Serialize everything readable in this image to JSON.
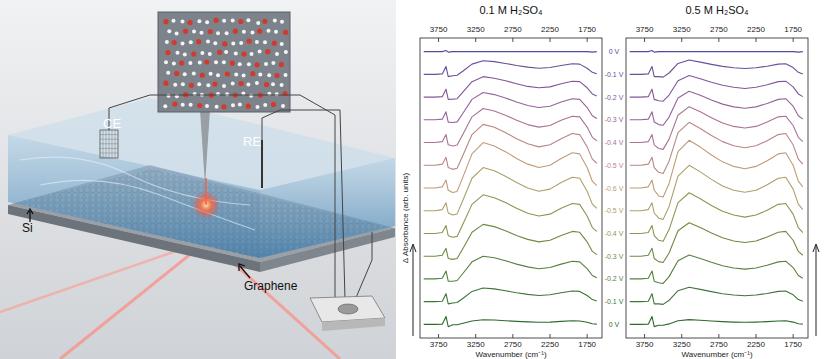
{
  "chart_data": [
    {
      "type": "line",
      "title": "0.1 M H₂SO₄",
      "xlabel": "Wavenumber (cm⁻¹)",
      "ylabel": "Δ Absorbance (arb. units)",
      "xlim": [
        4000,
        1550
      ],
      "xticks": [
        3750,
        3250,
        2750,
        2250,
        1750
      ],
      "ylim": [
        -0.6,
        12.6
      ],
      "tick_labels": "x",
      "grid": false,
      "x": [
        3950,
        3800,
        3700,
        3650,
        3620,
        3560,
        3500,
        3420,
        3300,
        3150,
        3000,
        2850,
        2700,
        2550,
        2400,
        2250,
        2100,
        1950,
        1850,
        1750,
        1680,
        1620
      ],
      "series": [
        {
          "name": "0 V",
          "color": "#4f4c9c",
          "values": [
            12,
            12,
            12,
            12.05,
            11.98,
            12,
            12,
            12,
            12,
            12,
            12,
            12,
            12,
            12,
            12,
            12,
            12,
            12,
            12,
            12,
            11.98,
            12
          ]
        },
        {
          "name": "-0.1 V",
          "color": "#6a4f96",
          "values": [
            11,
            11,
            11.02,
            11.35,
            10.9,
            10.94,
            10.96,
            11.15,
            11.45,
            11.6,
            11.56,
            11.48,
            11.39,
            11.32,
            11.27,
            11.3,
            11.39,
            11.47,
            11.45,
            11.27,
            11.09,
            11.03
          ]
        },
        {
          "name": "-0.2 V",
          "color": "#82579a",
          "values": [
            10,
            10,
            10.02,
            10.35,
            9.9,
            9.91,
            9.93,
            10.23,
            10.68,
            10.9,
            10.83,
            10.72,
            10.59,
            10.47,
            10.41,
            10.45,
            10.59,
            10.7,
            10.68,
            10.41,
            10.14,
            10.05
          ]
        },
        {
          "name": "-0.3 V",
          "color": "#96639a",
          "values": [
            9,
            9,
            9.03,
            9.35,
            8.9,
            8.88,
            8.91,
            9.3,
            9.9,
            10.2,
            10.11,
            9.96,
            9.78,
            9.63,
            9.54,
            9.6,
            9.78,
            9.93,
            9.9,
            9.54,
            9.18,
            9.06
          ]
        },
        {
          "name": "-0.4 V",
          "color": "#aa7394",
          "values": [
            8,
            8,
            8.04,
            8.35,
            7.9,
            7.85,
            7.89,
            8.38,
            9.13,
            9.5,
            9.39,
            9.2,
            8.98,
            8.79,
            8.68,
            8.75,
            8.98,
            9.16,
            9.13,
            8.68,
            8.23,
            8.08
          ]
        },
        {
          "name": "-0.5 V",
          "color": "#b98686",
          "values": [
            7,
            7,
            7.05,
            7.35,
            6.9,
            6.82,
            6.87,
            7.45,
            8.35,
            8.8,
            8.67,
            8.44,
            8.17,
            7.95,
            7.81,
            7.9,
            8.17,
            8.4,
            8.35,
            7.81,
            7.27,
            7.09
          ]
        },
        {
          "name": "-0.6 V",
          "color": "#c09a78",
          "values": [
            6,
            6,
            6.05,
            6.35,
            5.9,
            5.8,
            5.85,
            6.5,
            7.5,
            8,
            7.85,
            7.6,
            7.3,
            7.05,
            6.9,
            7,
            7.3,
            7.55,
            7.5,
            6.9,
            6.3,
            6.1
          ]
        },
        {
          "name": "-0.5 V",
          "color": "#aca06a",
          "values": [
            5,
            5,
            5.05,
            5.35,
            4.9,
            4.81,
            4.86,
            5.48,
            6.43,
            6.9,
            6.76,
            6.52,
            6.24,
            6,
            5.86,
            5.95,
            6.24,
            6.47,
            6.43,
            5.86,
            5.29,
            5.1
          ]
        },
        {
          "name": "-0.4 V",
          "color": "#8e9552",
          "values": [
            4,
            4,
            4.04,
            4.35,
            3.9,
            3.83,
            3.87,
            4.43,
            5.28,
            5.7,
            5.57,
            5.36,
            5.11,
            4.89,
            4.77,
            4.85,
            5.11,
            5.32,
            5.28,
            4.77,
            4.26,
            4.09
          ]
        },
        {
          "name": "-0.3 V",
          "color": "#708a44",
          "values": [
            3,
            3,
            3.04,
            3.35,
            2.9,
            2.86,
            2.9,
            3.35,
            4.05,
            4.4,
            4.3,
            4.12,
            3.91,
            3.74,
            3.63,
            3.7,
            3.91,
            4.09,
            4.05,
            3.63,
            3.21,
            3.07
          ]
        },
        {
          "name": "-0.2 V",
          "color": "#558040",
          "values": [
            2,
            2,
            2.03,
            2.35,
            1.9,
            1.9,
            1.93,
            2.25,
            2.75,
            3,
            2.93,
            2.8,
            2.65,
            2.53,
            2.45,
            2.5,
            2.65,
            2.78,
            2.75,
            2.45,
            2.15,
            2.05
          ]
        },
        {
          "name": "-0.1 V",
          "color": "#40753a",
          "values": [
            1,
            1,
            1.02,
            1.35,
            0.9,
            0.94,
            0.96,
            1.15,
            1.45,
            1.6,
            1.56,
            1.48,
            1.39,
            1.32,
            1.27,
            1.3,
            1.39,
            1.47,
            1.45,
            1.27,
            1.09,
            1.03
          ]
        },
        {
          "name": "0 V",
          "color": "#2e6a2e",
          "values": [
            0,
            0,
            0.01,
            0.35,
            -0.1,
            -0.02,
            -0.02,
            0.05,
            0.15,
            0.2,
            0.19,
            0.16,
            0.13,
            0.11,
            0.09,
            0.1,
            0.13,
            0.16,
            0.15,
            0.09,
            0.03,
            0.01
          ]
        }
      ]
    },
    {
      "type": "line",
      "title": "0.5 M H₂SO₄",
      "xlabel": "Wavenumber (cm⁻¹)",
      "xlim": [
        4000,
        1550
      ],
      "xticks": [
        3750,
        3250,
        2750,
        2250,
        1750
      ],
      "ylim": [
        -0.6,
        12.6
      ],
      "tick_labels": "x",
      "grid": false,
      "x": [
        3950,
        3800,
        3700,
        3650,
        3620,
        3560,
        3500,
        3420,
        3300,
        3150,
        3000,
        2850,
        2700,
        2550,
        2400,
        2250,
        2100,
        1950,
        1850,
        1750,
        1680,
        1620
      ],
      "series": [
        {
          "color": "#4f4c9c",
          "values": [
            12,
            12,
            12,
            12.05,
            11.98,
            12,
            12,
            12,
            12,
            12,
            12,
            12,
            12,
            12,
            12,
            12,
            12,
            12,
            12,
            12,
            11.98,
            12
          ]
        },
        {
          "color": "#6a4f96",
          "values": [
            11,
            11,
            11.02,
            11.35,
            10.9,
            10.9,
            10.88,
            11.06,
            11.48,
            11.63,
            11.54,
            11.44,
            11.35,
            11.29,
            11.26,
            11.29,
            11.36,
            11.45,
            11.47,
            11.3,
            11.09,
            11.02
          ]
        },
        {
          "color": "#82579a",
          "values": [
            10,
            10,
            10.02,
            10.35,
            9.9,
            9.84,
            9.82,
            10.09,
            10.72,
            10.95,
            10.81,
            10.65,
            10.52,
            10.43,
            10.38,
            10.43,
            10.54,
            10.68,
            10.7,
            10.45,
            10.14,
            10.02
          ]
        },
        {
          "color": "#96639a",
          "values": [
            9,
            9,
            9.03,
            9.35,
            8.9,
            8.79,
            8.76,
            9.12,
            9.96,
            10.26,
            10.08,
            9.87,
            9.69,
            9.57,
            9.51,
            9.57,
            9.72,
            9.9,
            9.93,
            9.6,
            9.18,
            9.03
          ]
        },
        {
          "color": "#aa7394",
          "values": [
            8,
            8,
            8.04,
            8.35,
            7.9,
            7.74,
            7.7,
            8.15,
            9.2,
            9.58,
            9.35,
            9.09,
            8.86,
            8.71,
            8.64,
            8.71,
            8.9,
            9.13,
            9.16,
            8.75,
            8.23,
            8.04
          ]
        },
        {
          "color": "#b98686",
          "values": [
            7,
            7,
            7.05,
            7.35,
            6.9,
            6.69,
            6.64,
            7.18,
            8.44,
            8.89,
            8.62,
            8.31,
            8.04,
            7.86,
            7.77,
            7.86,
            8.08,
            8.35,
            8.4,
            7.9,
            7.27,
            7.05
          ]
        },
        {
          "color": "#c09a78",
          "values": [
            6,
            6,
            6.05,
            6.35,
            5.9,
            5.65,
            5.6,
            6.2,
            7.6,
            8.1,
            7.8,
            7.45,
            7.15,
            6.95,
            6.85,
            6.95,
            7.2,
            7.5,
            7.55,
            7,
            6.3,
            6.05
          ]
        },
        {
          "color": "#aca06a",
          "values": [
            5,
            5,
            5.05,
            5.35,
            4.9,
            4.67,
            4.62,
            5.19,
            6.52,
            7,
            6.71,
            6.38,
            6.09,
            5.9,
            5.81,
            5.9,
            6.14,
            6.43,
            6.47,
            5.95,
            5.29,
            5.05
          ]
        },
        {
          "color": "#8e9552",
          "values": [
            4,
            4,
            4.04,
            4.35,
            3.9,
            3.7,
            3.66,
            4.17,
            5.36,
            5.79,
            5.53,
            5.23,
            4.98,
            4.81,
            4.72,
            4.81,
            5.02,
            5.28,
            5.32,
            4.85,
            4.26,
            4.04
          ]
        },
        {
          "color": "#708a44",
          "values": [
            3,
            3,
            3.04,
            3.35,
            2.9,
            2.76,
            2.72,
            3.14,
            4.12,
            4.47,
            4.26,
            4.02,
            3.81,
            3.67,
            3.6,
            3.67,
            3.84,
            4.05,
            4.09,
            3.7,
            3.21,
            3.04
          ]
        },
        {
          "color": "#558040",
          "values": [
            2,
            2,
            2.03,
            2.35,
            1.9,
            1.83,
            1.8,
            2.1,
            2.8,
            3.05,
            2.9,
            2.73,
            2.58,
            2.48,
            2.43,
            2.48,
            2.6,
            2.75,
            2.78,
            2.5,
            2.15,
            2.03
          ]
        },
        {
          "color": "#40753a",
          "values": [
            1,
            1,
            1.02,
            1.35,
            0.9,
            0.9,
            0.88,
            1.06,
            1.48,
            1.63,
            1.54,
            1.44,
            1.35,
            1.29,
            1.26,
            1.29,
            1.36,
            1.45,
            1.47,
            1.3,
            1.09,
            1.02
          ]
        },
        {
          "color": "#2e6a2e",
          "values": [
            0,
            0,
            0.01,
            0.35,
            -0.1,
            -0.04,
            -0.04,
            0.02,
            0.16,
            0.21,
            0.18,
            0.15,
            0.12,
            0.1,
            0.09,
            0.1,
            0.12,
            0.15,
            0.16,
            0.1,
            0.03,
            0.01
          ]
        }
      ]
    }
  ],
  "illustration": {
    "labels": {
      "ce": "CE",
      "re": "RE",
      "si": "Si",
      "graphene": "Graphene"
    }
  }
}
